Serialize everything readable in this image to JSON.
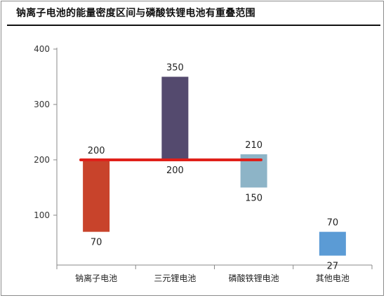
{
  "title": "钠离子电池的能量密度区间与磷酸铁锂电池有重叠范围",
  "chart_data": {
    "type": "bar",
    "subtype": "floating-range",
    "title": "钠离子电池的能量密度区间与磷酸铁锂电池有重叠范围",
    "categories": [
      "钠离子电池",
      "三元锂电池",
      "磷酸铁锂电池",
      "其他电池"
    ],
    "series": [
      {
        "ranges": [
          [
            70,
            200
          ],
          [
            200,
            350
          ],
          [
            150,
            210
          ],
          [
            27,
            70
          ]
        ],
        "colors": [
          "#c8432b",
          "#544a6e",
          "#8db4c7",
          "#5b9bd5"
        ]
      }
    ],
    "ylim": [
      10,
      400
    ],
    "yticks": [
      100,
      200,
      300,
      400
    ],
    "reference_line": {
      "value": 200,
      "color": "#e0201a"
    },
    "grid": false,
    "legend": "none"
  }
}
